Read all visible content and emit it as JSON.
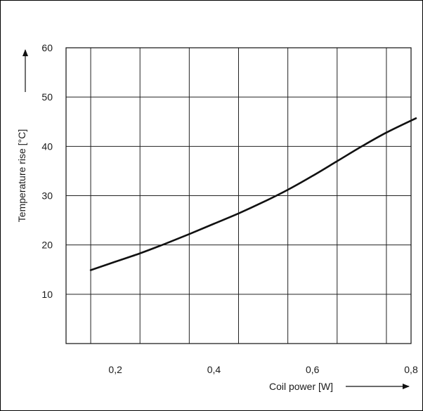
{
  "chart_data": {
    "type": "line",
    "title": "",
    "xlabel": "Coil power [W]",
    "ylabel": "Temperature rise [°C]",
    "xlim": [
      0.1,
      0.8
    ],
    "ylim": [
      0,
      60
    ],
    "x_ticks": [
      0.2,
      0.4,
      0.6,
      0.8
    ],
    "x_tick_labels": [
      "0,2",
      "0,4",
      "0,6",
      "0,8"
    ],
    "y_ticks": [
      10,
      20,
      30,
      40,
      50,
      60
    ],
    "y_tick_labels": [
      "10",
      "20",
      "30",
      "40",
      "50",
      "60"
    ],
    "grid": true,
    "legend": "none",
    "series": [
      {
        "color": "#111111",
        "x": [
          0.15,
          0.2,
          0.25,
          0.3,
          0.35,
          0.4,
          0.45,
          0.5,
          0.55,
          0.6,
          0.65,
          0.7,
          0.75,
          0.81
        ],
        "y": [
          14.9,
          16.6,
          18.3,
          20.2,
          22.2,
          24.3,
          26.4,
          28.7,
          31.2,
          34.0,
          37.0,
          40.0,
          42.8,
          45.7
        ]
      }
    ]
  }
}
